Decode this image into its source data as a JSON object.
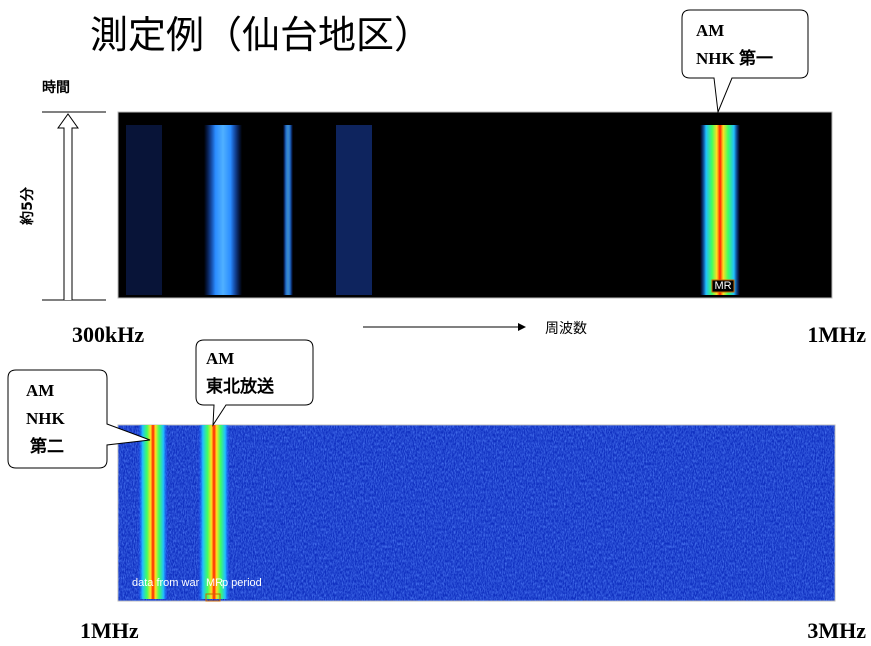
{
  "title": "測定例（仙台地区）",
  "time_label": "時間",
  "duration_label": "約5分",
  "panels": [
    {
      "freq_start": "300kHz",
      "freq_end": "1MHz",
      "axis_label": "周波数",
      "marker": "MR",
      "callouts": [
        {
          "lines": [
            "AM",
            "NHK 第一"
          ]
        }
      ]
    },
    {
      "freq_start": "1MHz",
      "freq_end": "3MHz",
      "marker": "MR",
      "overlay": [
        "data from war",
        "p period"
      ],
      "callouts": [
        {
          "lines": [
            "AM",
            "NHK",
            "第二"
          ]
        },
        {
          "lines": [
            "AM",
            "東北放送"
          ]
        }
      ]
    }
  ]
}
